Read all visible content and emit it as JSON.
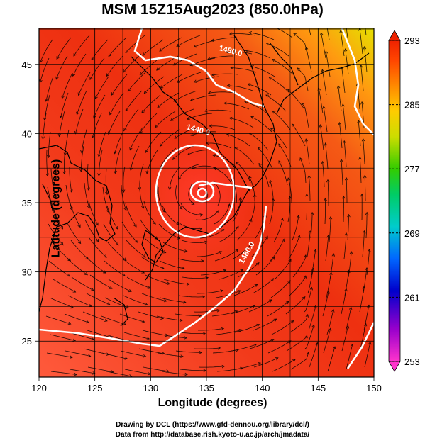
{
  "title": "MSM 15Z15Aug2023 (850.0hPa)",
  "xlabel": "Longitude (degrees)",
  "ylabel": "Latitude  (degrees)",
  "credits": [
    "Drawing by DCL (https://www.gfd-dennou.org/library/dcl/)",
    "Data from http://database.rish.kyoto-u.ac.jp/arch/jmadata/"
  ],
  "chart_data": {
    "type": "heatmap",
    "x_ticks": [
      "120",
      "125",
      "130",
      "135",
      "140",
      "145",
      "150"
    ],
    "y_ticks": [
      "25",
      "30",
      "35",
      "40",
      "45"
    ],
    "xlim": [
      120,
      150
    ],
    "ylim": [
      22.4,
      47.6
    ],
    "colorbar": {
      "min": 253,
      "max": 293,
      "tick_labels": [
        "293",
        "285",
        "277",
        "269",
        "261",
        "253"
      ],
      "colors": [
        "#ff33cc",
        "#9900cc",
        "#0000cc",
        "#0066ff",
        "#00cccc",
        "#00cc66",
        "#33cc00",
        "#ccdd00",
        "#ffcc00",
        "#ff8800",
        "#ff4400",
        "#ee2200"
      ]
    },
    "contours": [
      {
        "label": "1480.0",
        "lon": 137.1,
        "lat": 45.8
      },
      {
        "label": "1440.0",
        "lon": 134.2,
        "lat": 40.1
      },
      {
        "label": "1480.0",
        "lon": 138.8,
        "lat": 31.3
      }
    ]
  }
}
